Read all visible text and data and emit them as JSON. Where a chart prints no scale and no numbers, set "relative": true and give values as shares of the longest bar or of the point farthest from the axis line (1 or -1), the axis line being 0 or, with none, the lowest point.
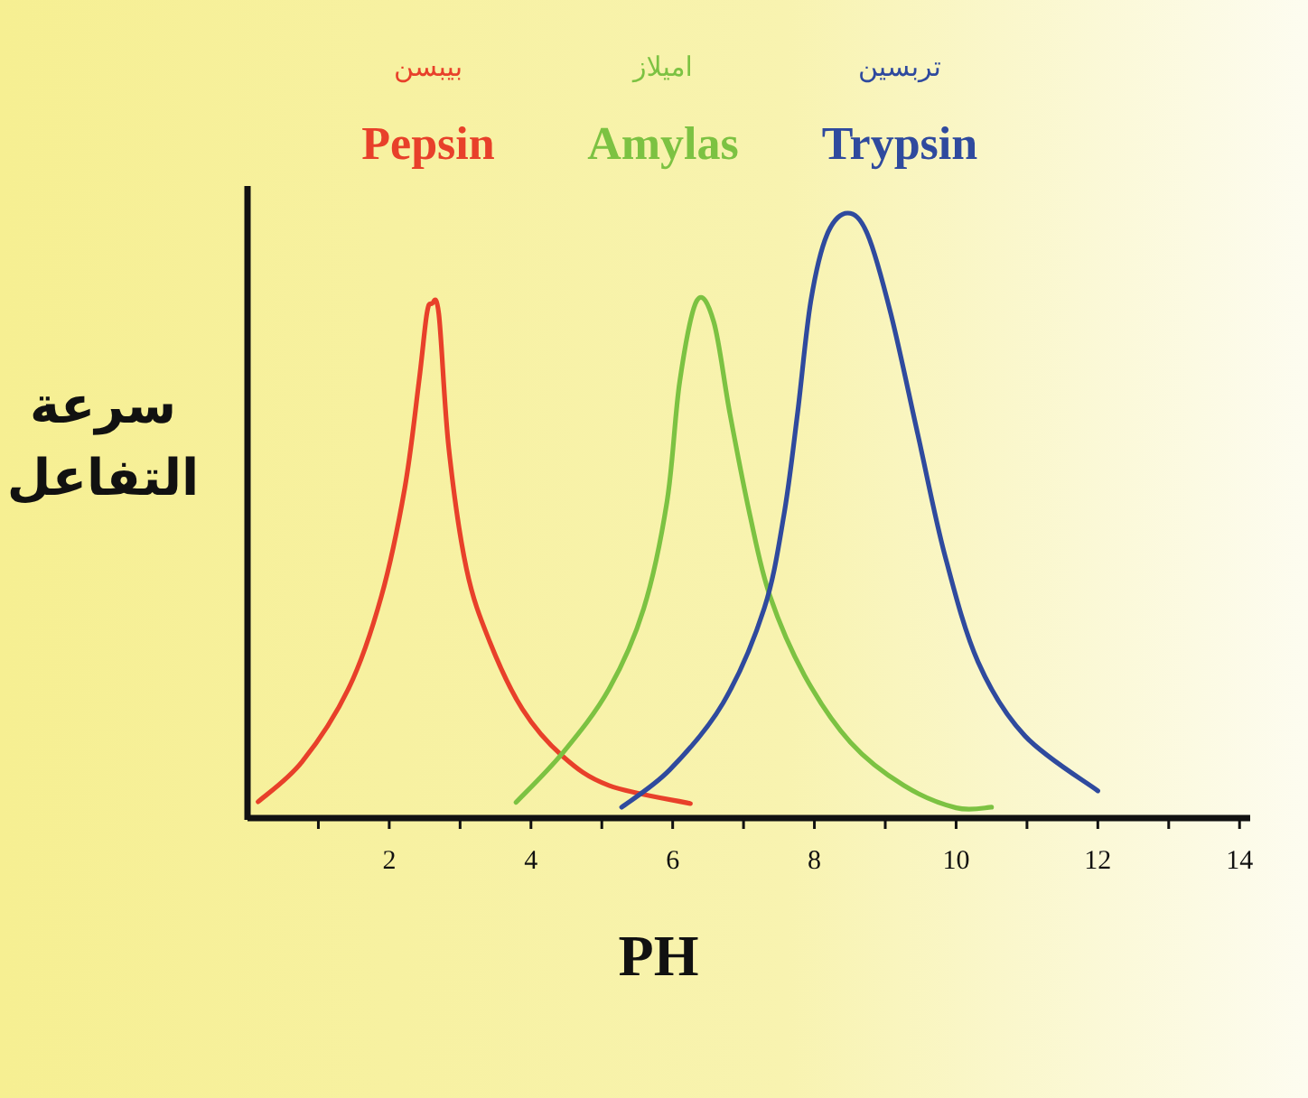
{
  "chart_data": {
    "type": "line",
    "relative": true,
    "xlabel": "PH",
    "ylabel": "سرعة التفاعل",
    "xlim": [
      0,
      14.15
    ],
    "xticks": [
      {
        "value": 1,
        "label": null
      },
      2,
      {
        "value": 3,
        "label": null
      },
      4,
      {
        "value": 5,
        "label": null
      },
      6,
      {
        "value": 7,
        "label": null
      },
      8,
      {
        "value": 9,
        "label": null
      },
      10,
      {
        "value": 11,
        "label": null
      },
      12,
      {
        "value": 13,
        "label": null
      },
      14
    ],
    "marker": "none",
    "line_style": "solid",
    "annotations": [
      "بيبسن",
      "اميلاز",
      "تربسين"
    ],
    "series": [
      {
        "name": "Pepsin",
        "color": "#e8402a",
        "x": [
          0.15,
          0.77,
          1.43,
          1.89,
          2.22,
          2.42,
          2.53,
          2.6,
          2.7,
          2.84,
          3.09,
          3.42,
          3.88,
          4.44,
          5.1,
          6.25
        ],
        "values": [
          0.027,
          0.093,
          0.215,
          0.367,
          0.546,
          0.722,
          0.833,
          0.85,
          0.833,
          0.612,
          0.412,
          0.291,
          0.18,
          0.103,
          0.054,
          0.024
        ]
      },
      {
        "name": "Amylas",
        "color": "#7cc242",
        "x": [
          3.79,
          4.45,
          5.1,
          5.59,
          5.92,
          6.1,
          6.34,
          6.58,
          6.81,
          7.09,
          7.37,
          7.86,
          8.51,
          9.26,
          10.0,
          10.5
        ],
        "values": [
          0.026,
          0.108,
          0.213,
          0.346,
          0.523,
          0.722,
          0.855,
          0.82,
          0.667,
          0.501,
          0.368,
          0.236,
          0.125,
          0.054,
          0.017,
          0.018
        ]
      },
      {
        "name": "Trypsin",
        "color": "#2f4a9e",
        "x": [
          5.28,
          5.96,
          6.71,
          7.29,
          7.57,
          7.76,
          7.95,
          8.18,
          8.47,
          8.75,
          9.08,
          9.46,
          9.84,
          10.31,
          10.97,
          12.0
        ],
        "values": [
          0.018,
          0.08,
          0.19,
          0.346,
          0.501,
          0.667,
          0.855,
          0.965,
          1,
          0.965,
          0.833,
          0.634,
          0.435,
          0.258,
          0.136,
          0.045
        ]
      }
    ]
  }
}
